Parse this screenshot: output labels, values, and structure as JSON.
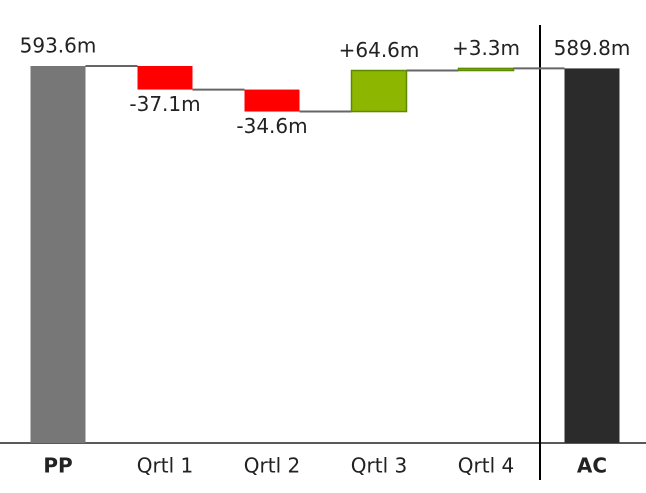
{
  "chart_data": {
    "type": "waterfall",
    "categories": [
      "PP",
      "Qrtl 1",
      "Qrtl 2",
      "Qrtl 3",
      "Qrtl 4",
      "AC"
    ],
    "values": [
      593.6,
      -37.1,
      -34.6,
      64.6,
      3.3,
      589.8
    ],
    "value_labels": [
      "593.6m",
      "-37.1m",
      "-34.6m",
      "+64.6m",
      "+3.3m",
      "589.8m"
    ],
    "colors": [
      "#777777",
      "#ff0000",
      "#ff0000",
      "#8db600",
      "#8db600",
      "#2b2b2b"
    ]
  }
}
